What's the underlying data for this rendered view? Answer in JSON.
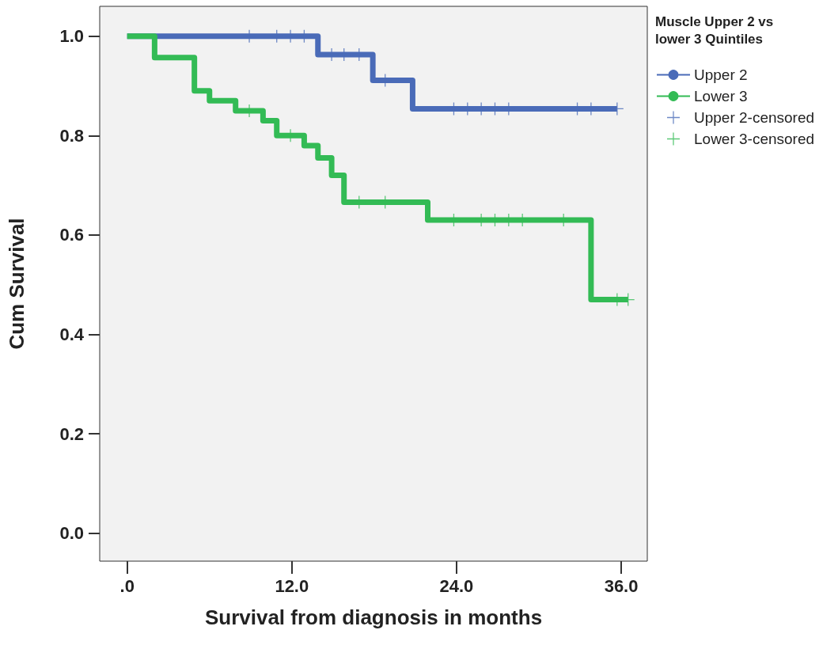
{
  "chart_data": {
    "type": "step",
    "xlabel": "Survival from diagnosis in months",
    "ylabel": "Cum Survival",
    "legend_title": "Muscle Upper 2 vs lower 3 Quintiles",
    "xlim": [
      -2.0,
      37.9
    ],
    "ylim": [
      -0.056,
      1.06
    ],
    "xticks": [
      {
        "value": 0,
        "label": ".0"
      },
      {
        "value": 12,
        "label": "12.0"
      },
      {
        "value": 24,
        "label": "24.0"
      },
      {
        "value": 36,
        "label": "36.0"
      }
    ],
    "yticks": [
      {
        "value": 0,
        "label": "0.0"
      },
      {
        "value": 0.2,
        "label": "0.2"
      },
      {
        "value": 0.4,
        "label": "0.4"
      },
      {
        "value": 0.6,
        "label": "0.6"
      },
      {
        "value": 0.8,
        "label": "0.8"
      },
      {
        "value": 1.0,
        "label": "1.0"
      }
    ],
    "grid": false,
    "legend": "right",
    "line_style": "solid",
    "series": [
      {
        "name": "Upper 2",
        "marker": "none",
        "color": "#4a6bb8",
        "x": [
          0,
          13.9,
          17.9,
          20.8,
          35.7
        ],
        "values": [
          1.0,
          0.963,
          0.911,
          0.854,
          0.854
        ]
      },
      {
        "name": "Lower 3",
        "marker": "none",
        "color": "#33bb55",
        "x": [
          0,
          2.0,
          4.9,
          6.0,
          7.9,
          9.9,
          10.9,
          12.9,
          13.9,
          14.9,
          15.8,
          21.9,
          33.8,
          36.5
        ],
        "values": [
          1.0,
          0.957,
          0.89,
          0.87,
          0.85,
          0.83,
          0.8,
          0.78,
          0.755,
          0.72,
          0.666,
          0.63,
          0.47,
          0.47
        ]
      },
      {
        "name": "Upper 2-censored",
        "type": "scatter",
        "marker": "cross",
        "color": "#4a6bb8",
        "x": [
          8.9,
          10.9,
          11.9,
          12.9,
          14.9,
          15.8,
          16.9,
          18.8,
          23.8,
          24.8,
          25.8,
          26.8,
          27.8,
          32.8,
          33.8,
          35.7
        ],
        "values": [
          1.0,
          1.0,
          1.0,
          1.0,
          0.963,
          0.963,
          0.963,
          0.911,
          0.854,
          0.854,
          0.854,
          0.854,
          0.854,
          0.854,
          0.854,
          0.854
        ]
      },
      {
        "name": "Lower 3-censored",
        "type": "scatter",
        "marker": "cross",
        "color": "#33bb55",
        "x": [
          8.9,
          11.9,
          16.9,
          18.8,
          23.8,
          25.8,
          26.8,
          27.8,
          28.8,
          31.8,
          35.7,
          36.5
        ],
        "values": [
          0.85,
          0.8,
          0.666,
          0.666,
          0.63,
          0.63,
          0.63,
          0.63,
          0.63,
          0.63,
          0.47,
          0.47
        ]
      }
    ]
  }
}
